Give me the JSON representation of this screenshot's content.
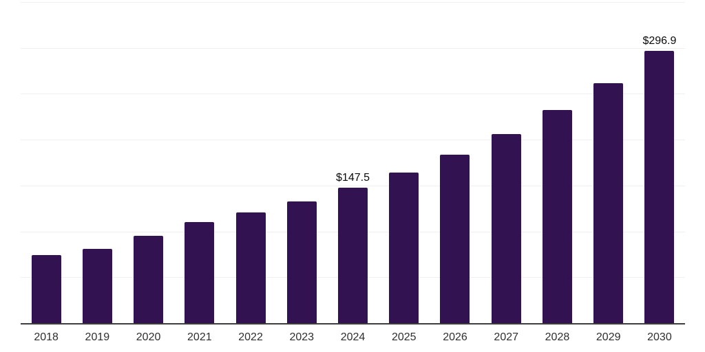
{
  "chart_data": {
    "type": "bar",
    "title": "",
    "xlabel": "",
    "ylabel": "",
    "categories": [
      "2018",
      "2019",
      "2020",
      "2021",
      "2022",
      "2023",
      "2024",
      "2025",
      "2026",
      "2027",
      "2028",
      "2029",
      "2030"
    ],
    "values": [
      74.6,
      81.3,
      95.5,
      110.0,
      120.4,
      132.8,
      147.5,
      164.1,
      184.0,
      205.9,
      232.1,
      261.6,
      296.9
    ],
    "labeled_points": [
      {
        "category": "2024",
        "label": "$147.5"
      },
      {
        "category": "2030",
        "label": "$296.9"
      }
    ],
    "ylim": [
      0,
      350
    ],
    "gridline_interval": 50,
    "grid_visible": true,
    "legend": "none",
    "colors": {
      "bar": "#331251",
      "gridline": "#efeff2",
      "axis": "#3d3d3d",
      "value_label": "#0a0a0a",
      "tick_label": "#2e2e2e",
      "background": "#ffffff"
    }
  }
}
